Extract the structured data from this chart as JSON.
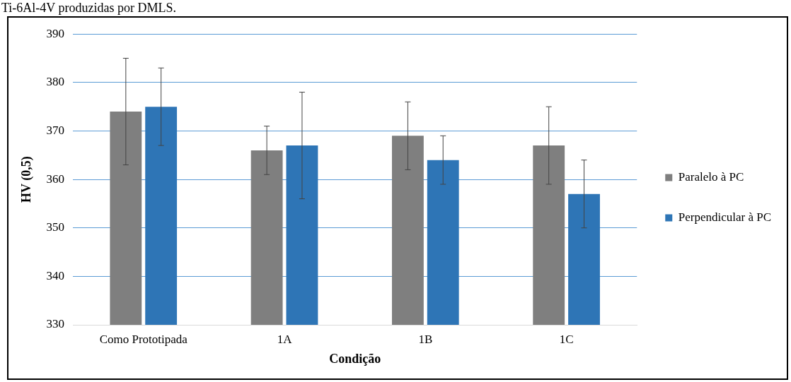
{
  "chart_data": {
    "type": "bar",
    "xlabel": "Condição",
    "ylabel": "HV (0,5)",
    "annotations": [
      "Ti-6Al-4V produzidas por DMLS."
    ],
    "categories": [
      "Como Prototipada",
      "1A",
      "1B",
      "1C"
    ],
    "series": [
      {
        "name": "Paralelo à PC",
        "color": "#7f7f7f",
        "values": [
          374,
          366,
          369,
          367
        ],
        "errors": [
          [
            363,
            385
          ],
          [
            361,
            371
          ],
          [
            362,
            376
          ],
          [
            359,
            375
          ]
        ]
      },
      {
        "name": "Perpendicular à PC",
        "color": "#2e75b6",
        "values": [
          375,
          367,
          364,
          357
        ],
        "errors": [
          [
            367,
            383
          ],
          [
            356,
            378
          ],
          [
            359,
            369
          ],
          [
            350,
            364
          ]
        ]
      }
    ],
    "ylim": [
      330,
      390
    ],
    "yticks": [
      330,
      340,
      350,
      360,
      370,
      380,
      390
    ],
    "grid": "y",
    "legend": "right"
  }
}
